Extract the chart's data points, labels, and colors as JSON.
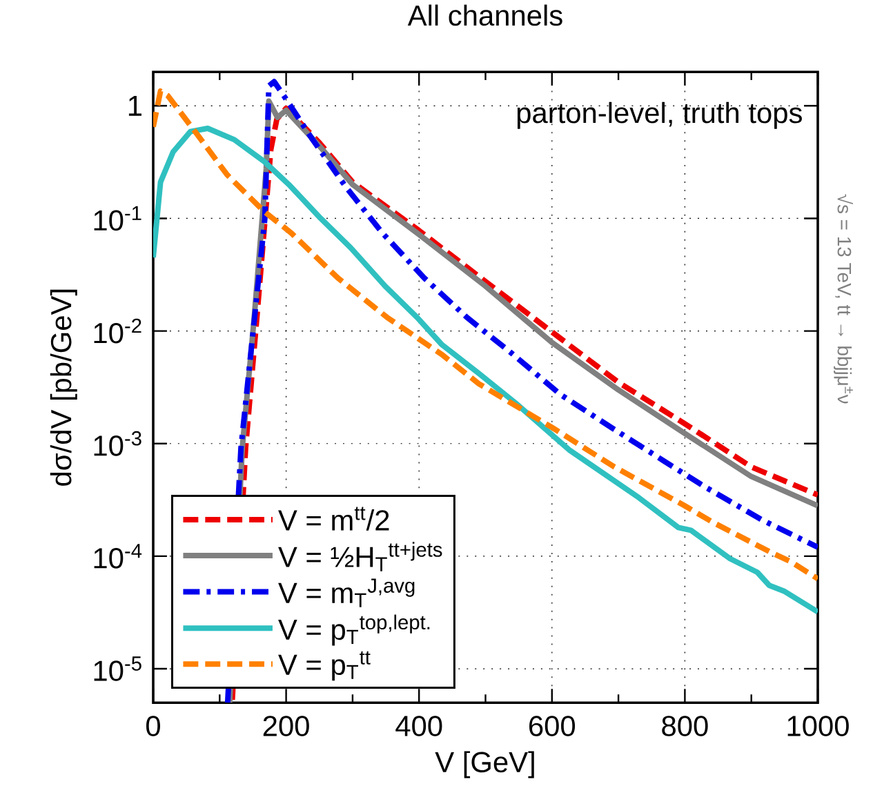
{
  "chart_data": {
    "type": "line",
    "title": "All channels",
    "xlabel": "V [GeV]",
    "ylabel": "dσ/dV [pb/GeV]",
    "xlim": [
      0,
      1000
    ],
    "xticks": [
      0,
      200,
      400,
      600,
      800,
      1000
    ],
    "ylim": [
      5e-06,
      2.0
    ],
    "yticks": [
      {
        "value": 1e-05,
        "label": "10$^{-5}$"
      },
      {
        "value": 0.0001,
        "label": "10$^{-4}$"
      },
      {
        "value": 0.001,
        "label": "10$^{-3}$"
      },
      {
        "value": 0.01,
        "label": "10$^{-2}$"
      },
      {
        "value": 0.1,
        "label": "10$^{-1}$"
      },
      {
        "value": 1,
        "label": "1"
      }
    ],
    "log": "y",
    "grid": true,
    "legend": "bottom left",
    "annotations": [
      "parton-level, truth tops",
      "√s = 13 TeV, tt → bbjjμ$^{±}$ν"
    ],
    "series": [
      {
        "name": "V = m$^{tt}$/2",
        "color": "#ee0000",
        "line_style": "dashed",
        "x": [
          119,
          139,
          156,
          177,
          186,
          200,
          250,
          300,
          400,
          500,
          600,
          700,
          800,
          900,
          1000
        ],
        "values": [
          5.3e-06,
          0.00091,
          0.0132,
          0.41,
          0.76,
          0.95,
          0.47,
          0.21,
          0.078,
          0.0275,
          0.0098,
          0.0035,
          0.0015,
          0.00062,
          0.00035
        ]
      },
      {
        "name": "V = ½H$_{T}$$^{tt+jets}$",
        "color": "#808080",
        "line_style": "solid",
        "x": [
          115,
          134,
          152,
          170,
          174,
          187,
          200,
          250,
          300,
          400,
          500,
          600,
          700,
          800,
          900,
          1000
        ],
        "values": [
          5e-06,
          0.00091,
          0.0132,
          0.275,
          1.1,
          0.79,
          0.91,
          0.44,
          0.2,
          0.072,
          0.025,
          0.0079,
          0.003,
          0.00123,
          0.00051,
          0.00028
        ]
      },
      {
        "name": "V = m$_{T}$$^{J,avg}$",
        "color": "#0000ee",
        "line_style": "dashdot",
        "x": [
          112,
          132,
          168,
          174,
          182,
          202,
          238,
          290,
          345,
          408,
          472,
          540,
          612,
          690,
          767,
          831,
          916,
          1000
        ],
        "values": [
          5e-06,
          0.00091,
          0.1,
          1.5,
          1.64,
          1.1,
          0.52,
          0.19,
          0.074,
          0.0295,
          0.0132,
          0.0063,
          0.00275,
          0.00138,
          0.00071,
          0.00041,
          0.00021,
          0.00012
        ]
      },
      {
        "name": "V = p$_{T}$$^{top,lept.}$",
        "color": "#30c0c0",
        "line_style": "solid",
        "x": [
          0,
          11,
          30,
          56,
          82,
          122,
          167,
          204,
          252,
          297,
          349,
          397,
          434,
          490,
          545,
          627,
          731,
          790,
          809,
          868,
          909,
          927,
          949,
          1000
        ],
        "values": [
          0.045,
          0.21,
          0.39,
          0.59,
          0.63,
          0.5,
          0.32,
          0.2,
          0.1,
          0.055,
          0.025,
          0.0132,
          0.0076,
          0.0042,
          0.0023,
          0.00087,
          0.00033,
          0.00018,
          0.00017,
          9.5e-05,
          7.2e-05,
          5.5e-05,
          4.9e-05,
          3.2e-05
        ]
      },
      {
        "name": "V = p$_{T}$$^{tt}$",
        "color": "#ff8000",
        "line_style": "dashed",
        "x": [
          0,
          11,
          22,
          63,
          111,
          167,
          208,
          278,
          352,
          434,
          490,
          601,
          694,
          800,
          842,
          927,
          960,
          1000
        ],
        "values": [
          0.65,
          1.35,
          1.23,
          0.59,
          0.245,
          0.115,
          0.074,
          0.0295,
          0.0132,
          0.0062,
          0.0034,
          0.00138,
          0.00062,
          0.00028,
          0.0002,
          0.00011,
          8.9e-05,
          6.3e-05
        ]
      }
    ]
  }
}
